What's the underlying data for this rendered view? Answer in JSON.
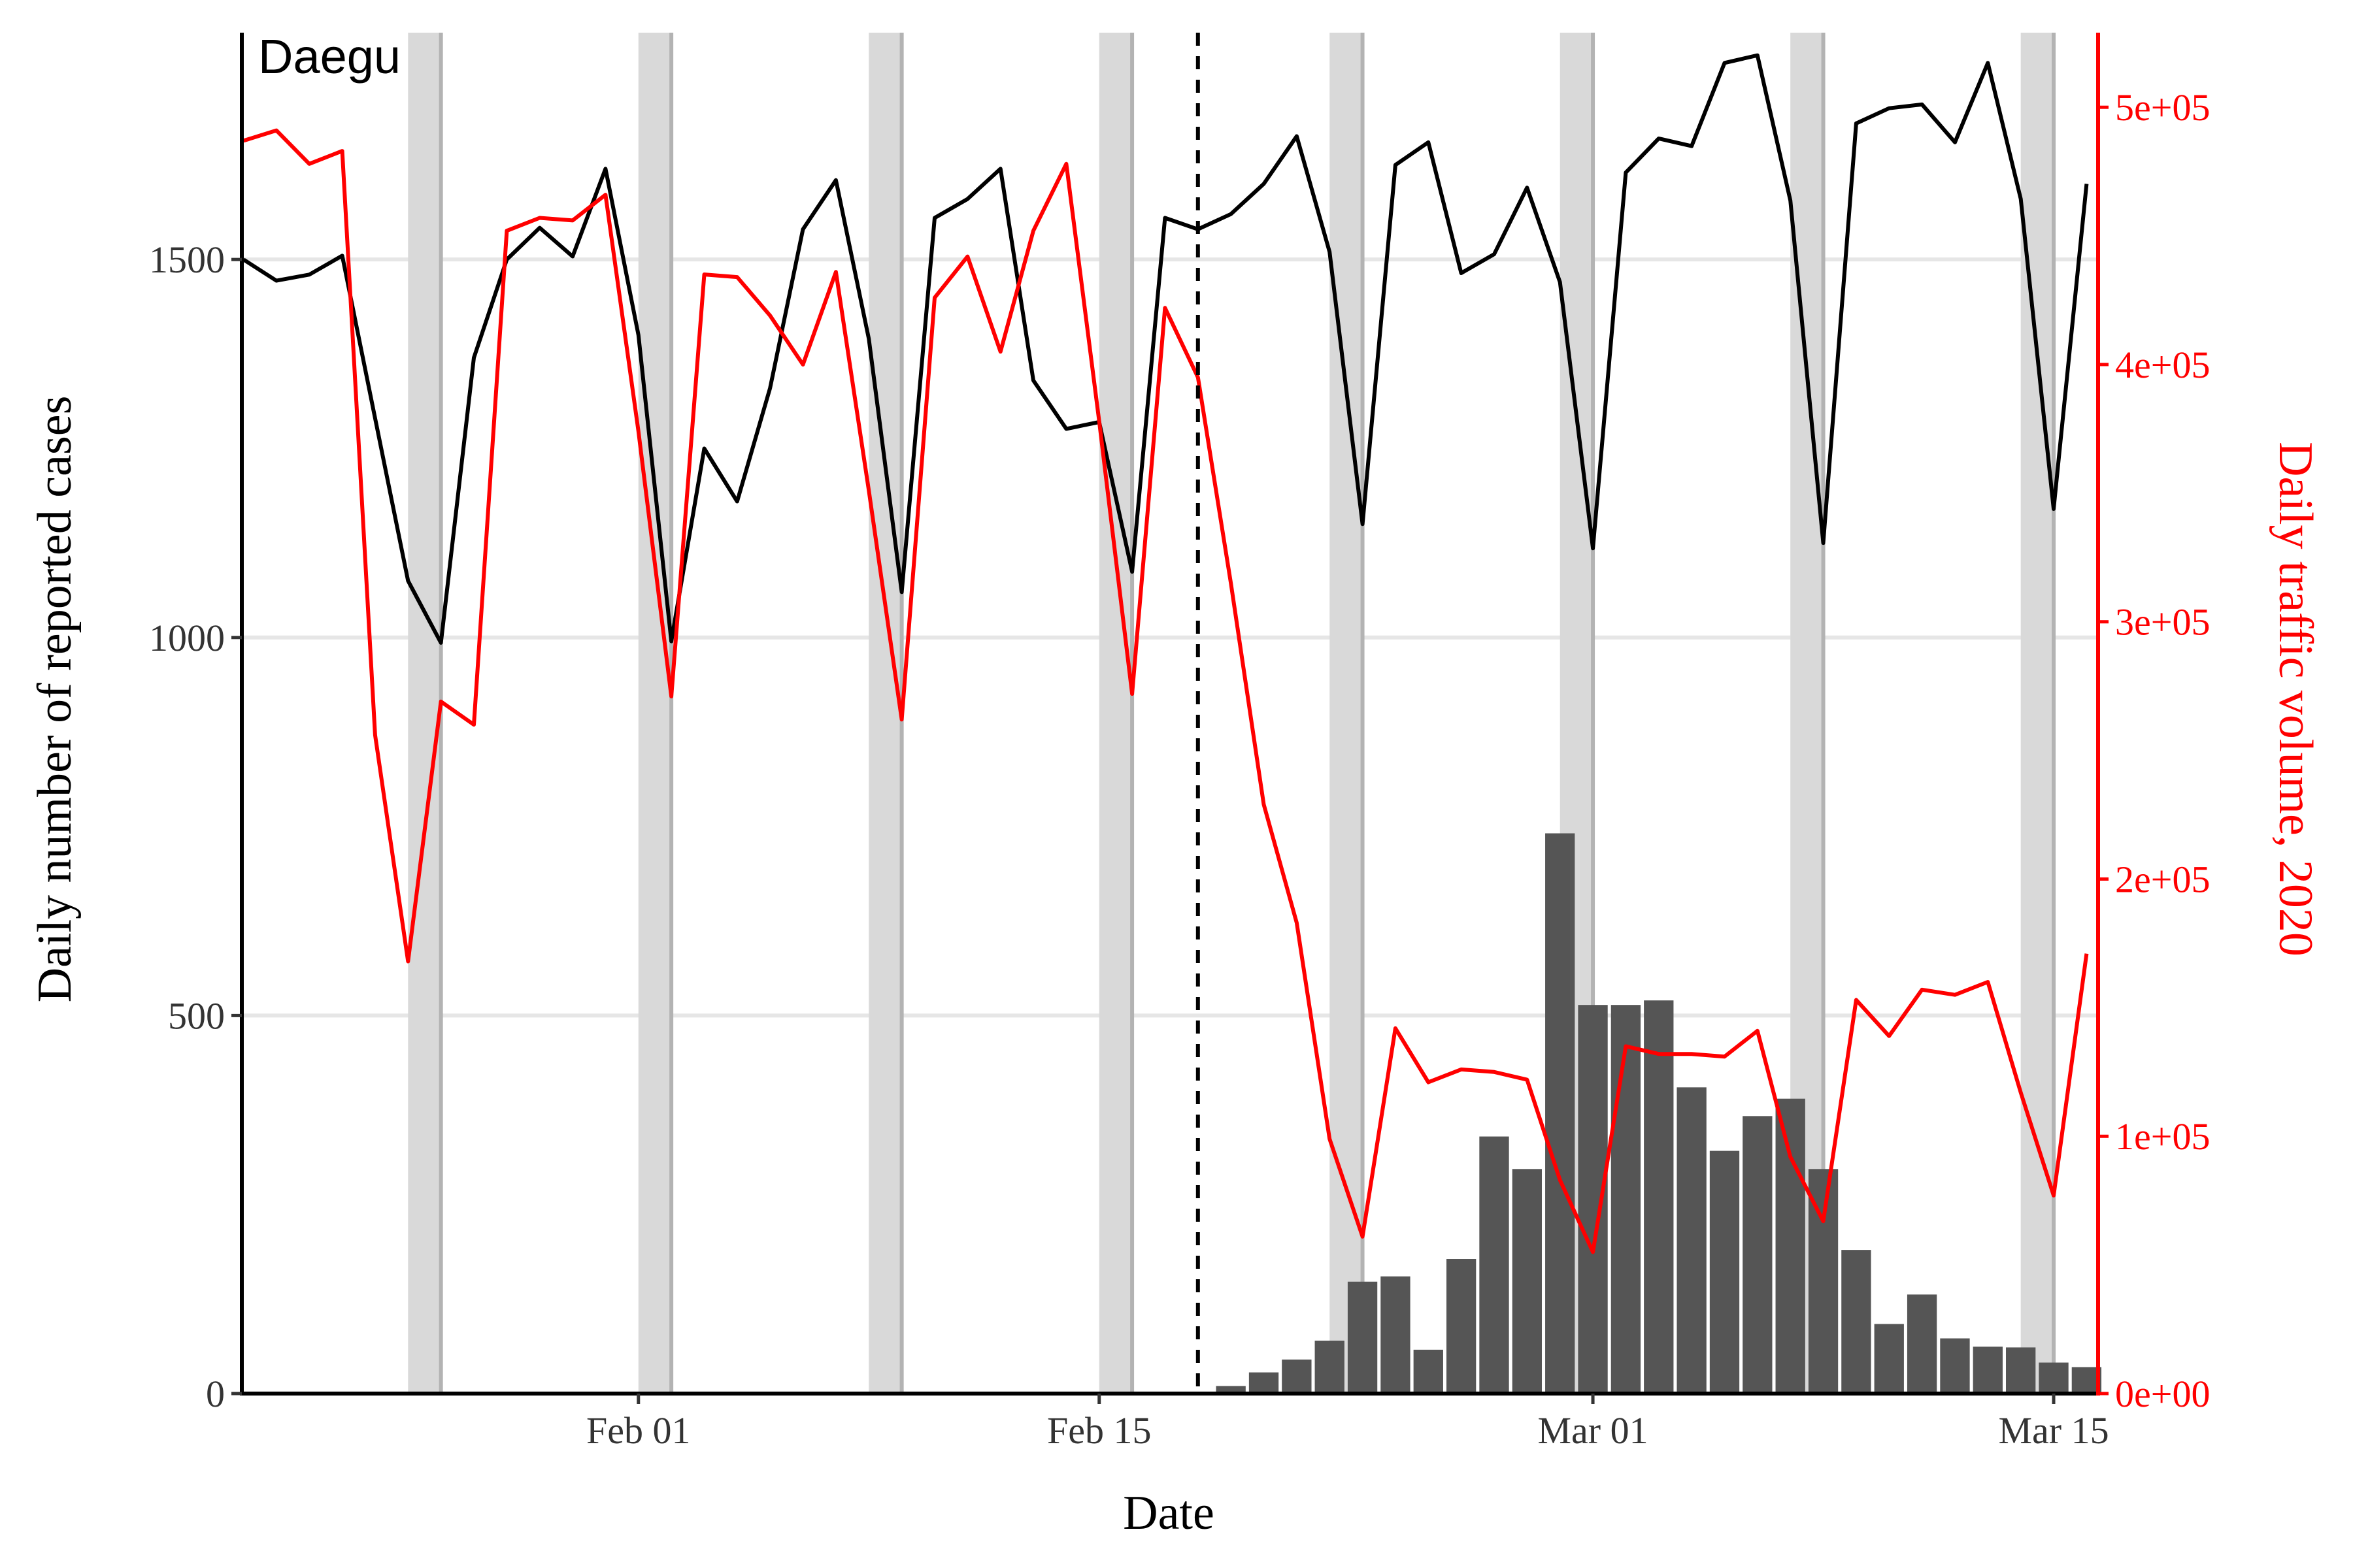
{
  "chart_data": {
    "type": "bar+line",
    "panel_label": "Daegu",
    "xlabel": "Date",
    "ylabel_left": "Daily number of reported cases",
    "ylabel_right": "Daily traffic volume, 2020",
    "ylim_left": [
      0,
      1800
    ],
    "ylim_right": [
      0,
      529000
    ],
    "xlim": [
      "2020-01-20",
      "2020-03-16"
    ],
    "left_ticks": [
      {
        "value": 0,
        "label": "0"
      },
      {
        "value": 500,
        "label": "500"
      },
      {
        "value": 1000,
        "label": "1000"
      },
      {
        "value": 1500,
        "label": "1500"
      }
    ],
    "right_ticks": [
      {
        "value": 0,
        "label": "0e+00"
      },
      {
        "value": 100000,
        "label": "1e+05"
      },
      {
        "value": 200000,
        "label": "2e+05"
      },
      {
        "value": 300000,
        "label": "3e+05"
      },
      {
        "value": 400000,
        "label": "4e+05"
      },
      {
        "value": 500000,
        "label": "5e+05"
      }
    ],
    "x_ticks": [
      {
        "date": "2020-02-01",
        "label": "Feb 01"
      },
      {
        "date": "2020-02-15",
        "label": "Feb 15"
      },
      {
        "date": "2020-03-01",
        "label": "Mar 01"
      },
      {
        "date": "2020-03-15",
        "label": "Mar 15"
      }
    ],
    "grid": "horizontal major lines (left axis)",
    "reference_line": {
      "date": "2020-02-18",
      "style": "dashed"
    },
    "shaded_periods": [
      {
        "start": "2020-01-25",
        "end": "2020-01-26"
      },
      {
        "start": "2020-02-01",
        "end": "2020-02-02"
      },
      {
        "start": "2020-02-08",
        "end": "2020-02-09"
      },
      {
        "start": "2020-02-15",
        "end": "2020-02-16"
      },
      {
        "start": "2020-02-22",
        "end": "2020-02-23"
      },
      {
        "start": "2020-02-29",
        "end": "2020-03-01"
      },
      {
        "start": "2020-03-07",
        "end": "2020-03-08"
      },
      {
        "start": "2020-03-14",
        "end": "2020-03-15"
      }
    ],
    "colors": {
      "cases_bars": "#555555",
      "line_black": "#000000",
      "line_red": "#ff0000",
      "shade": "#d9d9d9",
      "shade_edge": "#b3b3b3",
      "grid": "#e6e6e6"
    },
    "bars": {
      "axis": "left",
      "dates": [
        "2020-02-18",
        "2020-02-19",
        "2020-02-20",
        "2020-02-21",
        "2020-02-22",
        "2020-02-23",
        "2020-02-24",
        "2020-02-25",
        "2020-02-26",
        "2020-02-27",
        "2020-02-28",
        "2020-02-29",
        "2020-03-01",
        "2020-03-02",
        "2020-03-03",
        "2020-03-04",
        "2020-03-05",
        "2020-03-06",
        "2020-03-07",
        "2020-03-08",
        "2020-03-09",
        "2020-03-10",
        "2020-03-11",
        "2020-03-12",
        "2020-03-13",
        "2020-03-14",
        "2020-03-15",
        "2020-03-16"
      ],
      "values": [
        1,
        10,
        28,
        45,
        70,
        148,
        155,
        58,
        178,
        340,
        297,
        741,
        514,
        514,
        520,
        405,
        321,
        367,
        390,
        297,
        190,
        92,
        131,
        73,
        62,
        61,
        41,
        35
      ]
    },
    "series": [
      {
        "axis": "left",
        "color": "#000000",
        "dates": [
          "2020-01-20",
          "2020-01-21",
          "2020-01-22",
          "2020-01-23",
          "2020-01-24",
          "2020-01-25",
          "2020-01-26",
          "2020-01-27",
          "2020-01-28",
          "2020-01-29",
          "2020-01-30",
          "2020-01-31",
          "2020-02-01",
          "2020-02-02",
          "2020-02-03",
          "2020-02-04",
          "2020-02-05",
          "2020-02-06",
          "2020-02-07",
          "2020-02-08",
          "2020-02-09",
          "2020-02-10",
          "2020-02-11",
          "2020-02-12",
          "2020-02-13",
          "2020-02-14",
          "2020-02-15",
          "2020-02-16",
          "2020-02-17",
          "2020-02-18",
          "2020-02-19",
          "2020-02-20",
          "2020-02-21",
          "2020-02-22",
          "2020-02-23",
          "2020-02-24",
          "2020-02-25",
          "2020-02-26",
          "2020-02-27",
          "2020-02-28",
          "2020-02-29",
          "2020-03-01",
          "2020-03-02",
          "2020-03-03",
          "2020-03-04",
          "2020-03-05",
          "2020-03-06",
          "2020-03-07",
          "2020-03-08",
          "2020-03-09",
          "2020-03-10",
          "2020-03-11",
          "2020-03-12",
          "2020-03-13",
          "2020-03-14",
          "2020-03-15",
          "2020-03-16"
        ],
        "values": [
          1500,
          1472,
          1480,
          1505,
          1290,
          1075,
          993,
          1370,
          1500,
          1542,
          1504,
          1620,
          1400,
          995,
          1250,
          1180,
          1330,
          1540,
          1605,
          1395,
          1060,
          1555,
          1580,
          1620,
          1340,
          1276,
          1285,
          1087,
          1555,
          1540,
          1560,
          1600,
          1663,
          1510,
          1150,
          1625,
          1655,
          1482,
          1507,
          1595,
          1470,
          1118,
          1615,
          1660,
          1650,
          1760,
          1770,
          1578,
          1125,
          1680,
          1700,
          1705,
          1655,
          1760,
          1580,
          1170,
          1600
        ]
      },
      {
        "axis": "right",
        "color": "#ff0000",
        "dates": [
          "2020-01-20",
          "2020-01-21",
          "2020-01-22",
          "2020-01-23",
          "2020-01-24",
          "2020-01-25",
          "2020-01-26",
          "2020-01-27",
          "2020-01-28",
          "2020-01-29",
          "2020-01-30",
          "2020-01-31",
          "2020-02-01",
          "2020-02-02",
          "2020-02-03",
          "2020-02-04",
          "2020-02-05",
          "2020-02-06",
          "2020-02-07",
          "2020-02-08",
          "2020-02-09",
          "2020-02-10",
          "2020-02-11",
          "2020-02-12",
          "2020-02-13",
          "2020-02-14",
          "2020-02-15",
          "2020-02-16",
          "2020-02-17",
          "2020-02-18",
          "2020-02-19",
          "2020-02-20",
          "2020-02-21",
          "2020-02-22",
          "2020-02-23",
          "2020-02-24",
          "2020-02-25",
          "2020-02-26",
          "2020-02-27",
          "2020-02-28",
          "2020-02-29",
          "2020-03-01",
          "2020-03-02",
          "2020-03-03",
          "2020-03-04",
          "2020-03-05",
          "2020-03-06",
          "2020-03-07",
          "2020-03-08",
          "2020-03-09",
          "2020-03-10",
          "2020-03-11",
          "2020-03-12",
          "2020-03-13",
          "2020-03-14",
          "2020-03-15",
          "2020-03-16"
        ],
        "values": [
          487000,
          491000,
          478000,
          483000,
          256000,
          168000,
          269000,
          260000,
          452000,
          457000,
          456000,
          466000,
          374000,
          271000,
          435000,
          434000,
          419000,
          400000,
          436000,
          351000,
          262000,
          426000,
          442000,
          405000,
          452000,
          478000,
          378000,
          272000,
          422000,
          395000,
          315000,
          229000,
          183000,
          99000,
          61000,
          142000,
          121000,
          126000,
          125000,
          122000,
          83000,
          55000,
          135000,
          132000,
          132000,
          131000,
          141000,
          92000,
          67000,
          153000,
          139000,
          157000,
          155000,
          160000,
          117000,
          77000,
          171000
        ]
      }
    ]
  }
}
